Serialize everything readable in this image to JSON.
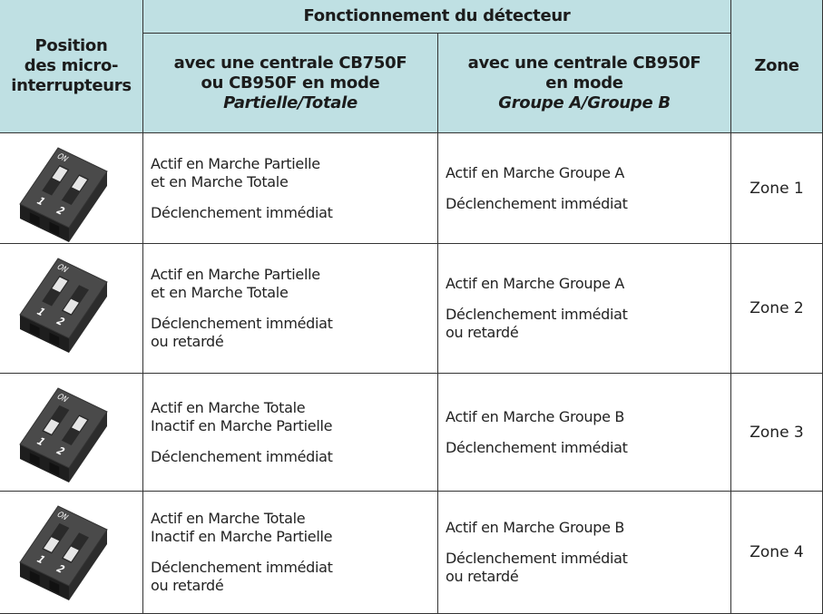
{
  "header": {
    "position": [
      "Position",
      "des micro-",
      "interrupteurs"
    ],
    "group": "Fonctionnement du détecteur",
    "col_a": {
      "lines": [
        "avec une centrale CB750F",
        "ou CB950F en mode"
      ],
      "emphasis": "Partielle/Totale"
    },
    "col_b": {
      "lines": [
        "avec une centrale CB950F",
        "en mode"
      ],
      "emphasis": "Groupe A/Groupe B"
    },
    "zone": "Zone"
  },
  "switch_labels": {
    "on": "ON",
    "one": "1",
    "two": "2"
  },
  "table": {
    "rows": [
      {
        "mode": [
          "Actif en Marche Partielle",
          "et en Marche Totale"
        ],
        "trigger": [
          "Déclenchement immédiat"
        ],
        "group_mode": [
          "Actif en Marche Groupe A"
        ],
        "group_trigger": [
          "Déclenchement immédiat"
        ],
        "zone": "Zone 1"
      },
      {
        "mode": [
          "Actif en Marche Partielle",
          "et en Marche Totale"
        ],
        "trigger": [
          "Déclenchement immédiat",
          "ou retardé"
        ],
        "group_mode": [
          "Actif en Marche Groupe A"
        ],
        "group_trigger": [
          "Déclenchement immédiat",
          "ou retardé"
        ],
        "zone": "Zone 2"
      },
      {
        "mode": [
          "Actif en Marche Totale",
          "Inactif en Marche Partielle"
        ],
        "trigger": [
          "Déclenchement immédiat"
        ],
        "group_mode": [
          "Actif en Marche Groupe B"
        ],
        "group_trigger": [
          "Déclenchement immédiat"
        ],
        "zone": "Zone 3"
      },
      {
        "mode": [
          "Actif en Marche Totale",
          "Inactif en Marche Partielle"
        ],
        "trigger": [
          "Déclenchement immédiat",
          "ou retardé"
        ],
        "group_mode": [
          "Actif en Marche Groupe B"
        ],
        "group_trigger": [
          "Déclenchement immédiat",
          "ou retardé"
        ],
        "zone": "Zone 4"
      }
    ]
  }
}
